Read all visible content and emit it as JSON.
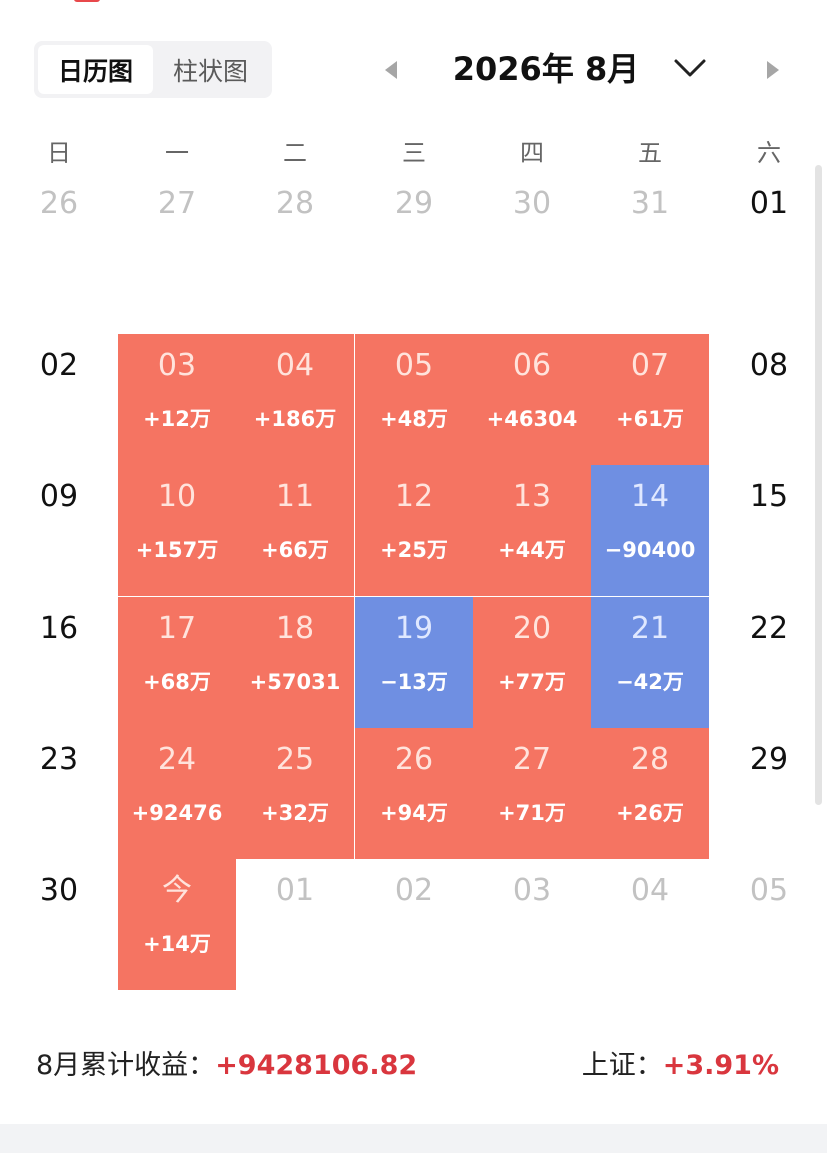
{
  "view_toggle": {
    "options": [
      "日历图",
      "柱状图"
    ],
    "selected": "日历图"
  },
  "header": {
    "month_title": "2026年 8月"
  },
  "weekdays": [
    "日",
    "一",
    "二",
    "三",
    "四",
    "五",
    "六"
  ],
  "weeks": [
    [
      {
        "day": "26",
        "state": "other"
      },
      {
        "day": "27",
        "state": "other"
      },
      {
        "day": "28",
        "state": "other"
      },
      {
        "day": "29",
        "state": "other"
      },
      {
        "day": "30",
        "state": "other"
      },
      {
        "day": "31",
        "state": "other"
      },
      {
        "day": "01",
        "state": "weekend"
      }
    ],
    [
      {
        "day": "02",
        "state": "weekend"
      },
      {
        "day": "03",
        "state": "gain",
        "amount": "+12万"
      },
      {
        "day": "04",
        "state": "gain",
        "amount": "+186万"
      },
      {
        "day": "05",
        "state": "gain",
        "amount": "+48万"
      },
      {
        "day": "06",
        "state": "gain",
        "amount": "+46304"
      },
      {
        "day": "07",
        "state": "gain",
        "amount": "+61万"
      },
      {
        "day": "08",
        "state": "weekend"
      }
    ],
    [
      {
        "day": "09",
        "state": "weekend"
      },
      {
        "day": "10",
        "state": "gain",
        "amount": "+157万"
      },
      {
        "day": "11",
        "state": "gain",
        "amount": "+66万"
      },
      {
        "day": "12",
        "state": "gain",
        "amount": "+25万"
      },
      {
        "day": "13",
        "state": "gain",
        "amount": "+44万"
      },
      {
        "day": "14",
        "state": "loss",
        "amount": "−90400"
      },
      {
        "day": "15",
        "state": "weekend"
      }
    ],
    [
      {
        "day": "16",
        "state": "weekend"
      },
      {
        "day": "17",
        "state": "gain",
        "amount": "+68万"
      },
      {
        "day": "18",
        "state": "gain",
        "amount": "+57031"
      },
      {
        "day": "19",
        "state": "loss",
        "amount": "−13万"
      },
      {
        "day": "20",
        "state": "gain",
        "amount": "+77万"
      },
      {
        "day": "21",
        "state": "loss",
        "amount": "−42万"
      },
      {
        "day": "22",
        "state": "weekend"
      }
    ],
    [
      {
        "day": "23",
        "state": "weekend"
      },
      {
        "day": "24",
        "state": "gain",
        "amount": "+92476"
      },
      {
        "day": "25",
        "state": "gain",
        "amount": "+32万"
      },
      {
        "day": "26",
        "state": "gain",
        "amount": "+94万"
      },
      {
        "day": "27",
        "state": "gain",
        "amount": "+71万"
      },
      {
        "day": "28",
        "state": "gain",
        "amount": "+26万"
      },
      {
        "day": "29",
        "state": "weekend"
      }
    ],
    [
      {
        "day": "30",
        "state": "weekend"
      },
      {
        "day": "今",
        "state": "gain",
        "amount": "+14万"
      },
      {
        "day": "01",
        "state": "other"
      },
      {
        "day": "02",
        "state": "other"
      },
      {
        "day": "03",
        "state": "other"
      },
      {
        "day": "04",
        "state": "other"
      },
      {
        "day": "05",
        "state": "other"
      }
    ]
  ],
  "summary": {
    "monthly_label": "8月累计收益：",
    "monthly_value": "+9428106.82",
    "index_label": "上证：",
    "index_value": "+3.91%"
  },
  "colors": {
    "gain": "#f57462",
    "loss": "#6f8fe2",
    "positive_text": "#d9363e"
  },
  "icons": {
    "prev": "triangle-left-icon",
    "next": "triangle-right-icon",
    "dropdown": "chevron-down-icon"
  }
}
